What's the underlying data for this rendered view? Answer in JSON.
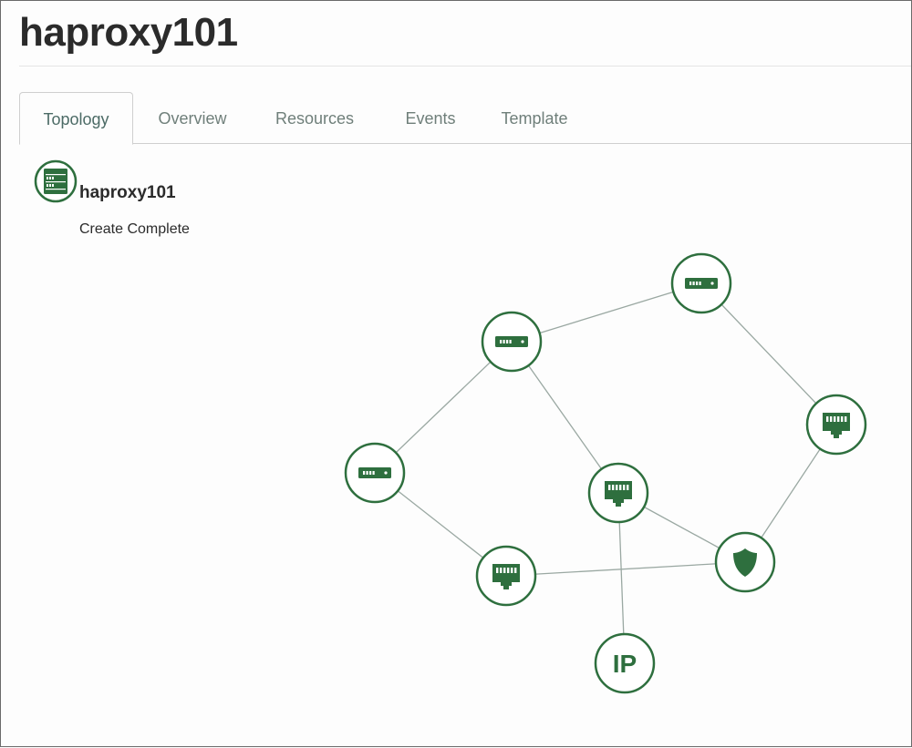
{
  "page": {
    "title": "haproxy101"
  },
  "tabs": [
    {
      "label": "Topology",
      "active": true
    },
    {
      "label": "Overview",
      "active": false
    },
    {
      "label": "Resources",
      "active": false
    },
    {
      "label": "Events",
      "active": false
    },
    {
      "label": "Template",
      "active": false
    }
  ],
  "stack": {
    "name": "haproxy101",
    "status": "Create Complete",
    "icon": "server-stack-icon"
  },
  "colors": {
    "node_fill": "#2e6f3e",
    "node_ring": "#2e6f3e",
    "edge": "#9aa8a2",
    "tab_text": "#6f7f7a"
  },
  "topology": {
    "nodes": [
      {
        "id": "server-1",
        "type": "server",
        "icon": "server-icon"
      },
      {
        "id": "server-2",
        "type": "server",
        "icon": "server-icon"
      },
      {
        "id": "server-3",
        "type": "server",
        "icon": "server-icon"
      },
      {
        "id": "port-1",
        "type": "port",
        "icon": "network-port-icon"
      },
      {
        "id": "port-2",
        "type": "port",
        "icon": "network-port-icon"
      },
      {
        "id": "port-3",
        "type": "port",
        "icon": "network-port-icon"
      },
      {
        "id": "security-group",
        "type": "security",
        "icon": "shield-icon"
      },
      {
        "id": "floating-ip",
        "type": "ip",
        "icon": "ip-icon",
        "label": "IP"
      }
    ],
    "edges": [
      [
        "server-2",
        "server-1"
      ],
      [
        "server-2",
        "server-3"
      ],
      [
        "server-2",
        "port-2"
      ],
      [
        "server-1",
        "port-1"
      ],
      [
        "server-3",
        "port-3"
      ],
      [
        "port-2",
        "security-group"
      ],
      [
        "port-3",
        "security-group"
      ],
      [
        "port-1",
        "security-group"
      ],
      [
        "port-2",
        "floating-ip"
      ]
    ]
  }
}
